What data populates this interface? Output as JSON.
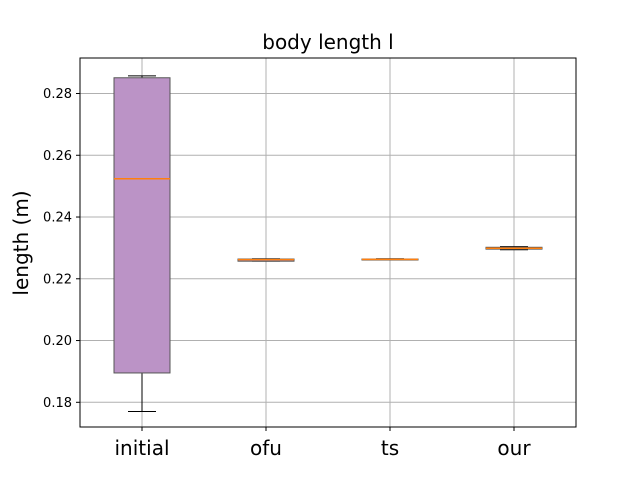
{
  "chart_data": {
    "type": "box",
    "title": "body length l",
    "xlabel": "",
    "ylabel": "length (m)",
    "ylim": [
      0.172,
      0.2915
    ],
    "yticks": [
      0.18,
      0.2,
      0.22,
      0.24,
      0.26,
      0.28
    ],
    "ytick_labels": [
      "0.18",
      "0.20",
      "0.22",
      "0.24",
      "0.26",
      "0.28"
    ],
    "grid": true,
    "categories": [
      "initial",
      "ofu",
      "ts",
      "our"
    ],
    "boxes": [
      {
        "name": "initial",
        "whisker_low": 0.177,
        "q1": 0.1895,
        "median": 0.2524,
        "q3": 0.2851,
        "whisker_high": 0.2857,
        "fill": "#bb93c6"
      },
      {
        "name": "ofu",
        "whisker_low": 0.2257,
        "q1": 0.2257,
        "median": 0.2262,
        "q3": 0.2264,
        "whisker_high": 0.2265,
        "fill": "#bb93c6"
      },
      {
        "name": "ts",
        "whisker_low": 0.2262,
        "q1": 0.2262,
        "median": 0.2263,
        "q3": 0.2264,
        "whisker_high": 0.2265,
        "fill": "#bb93c6"
      },
      {
        "name": "our",
        "whisker_low": 0.2294,
        "q1": 0.2296,
        "median": 0.2299,
        "q3": 0.2302,
        "whisker_high": 0.2304,
        "fill": "#bb93c6"
      }
    ],
    "colors": {
      "median": "#ff7f0e",
      "grid": "#b0b0b0",
      "box_edge": "#555555"
    }
  }
}
